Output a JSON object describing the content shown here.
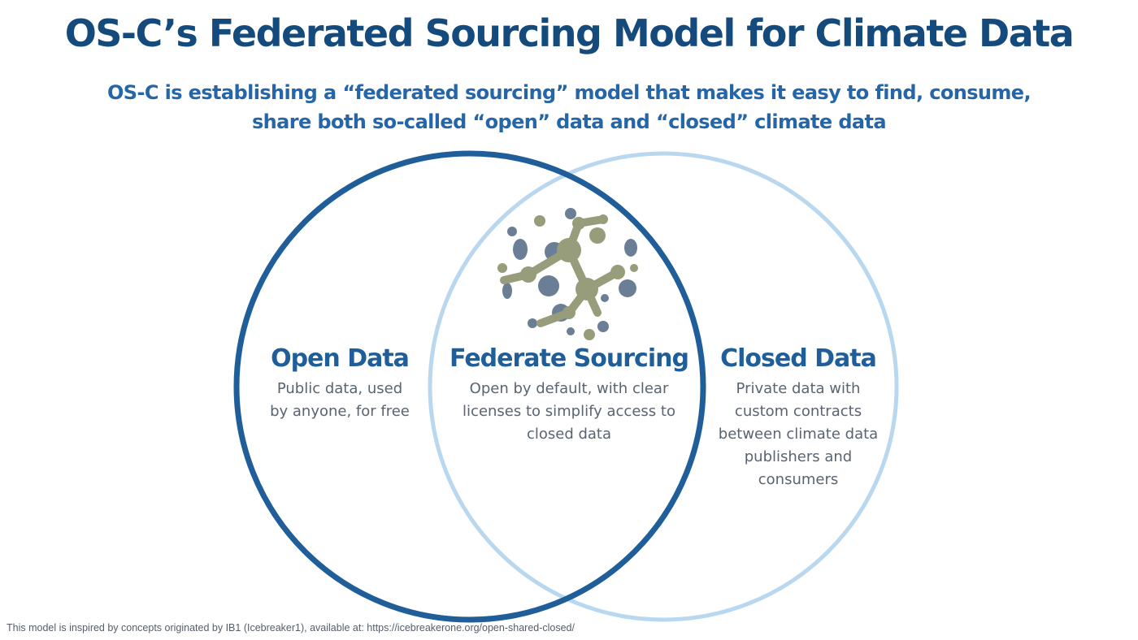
{
  "header": {
    "title": "OS-C’s Federated Sourcing Model for Climate Data",
    "subtitle_lines": [
      "OS-C is establishing a “federated sourcing” model that makes it easy to find, consume,",
      "share both so-called “open” data and “closed” climate data"
    ]
  },
  "venn": {
    "open": {
      "title": "Open Data",
      "desc_lines": [
        "Public data, used",
        "by anyone, for free"
      ],
      "color": "#1f5e99"
    },
    "federated": {
      "title": "Federate Sourcing",
      "desc_lines": [
        "Open by default, with clear",
        "licenses to simplify access to",
        "closed data"
      ],
      "logo_icon": "federated-network-sphere-icon",
      "logo_colors": {
        "nodes": "#979d7a",
        "dots": "#6a7f95"
      }
    },
    "closed": {
      "title": "Closed Data",
      "desc_lines": [
        "Private data with",
        "custom contracts",
        "between climate data",
        "publishers and",
        "consumers"
      ],
      "color": "#b9d8f0"
    }
  },
  "footnote": "This model is inspired by concepts originated by IB1 (Icebreaker1), available at: https://icebreakerone.org/open-shared-closed/"
}
